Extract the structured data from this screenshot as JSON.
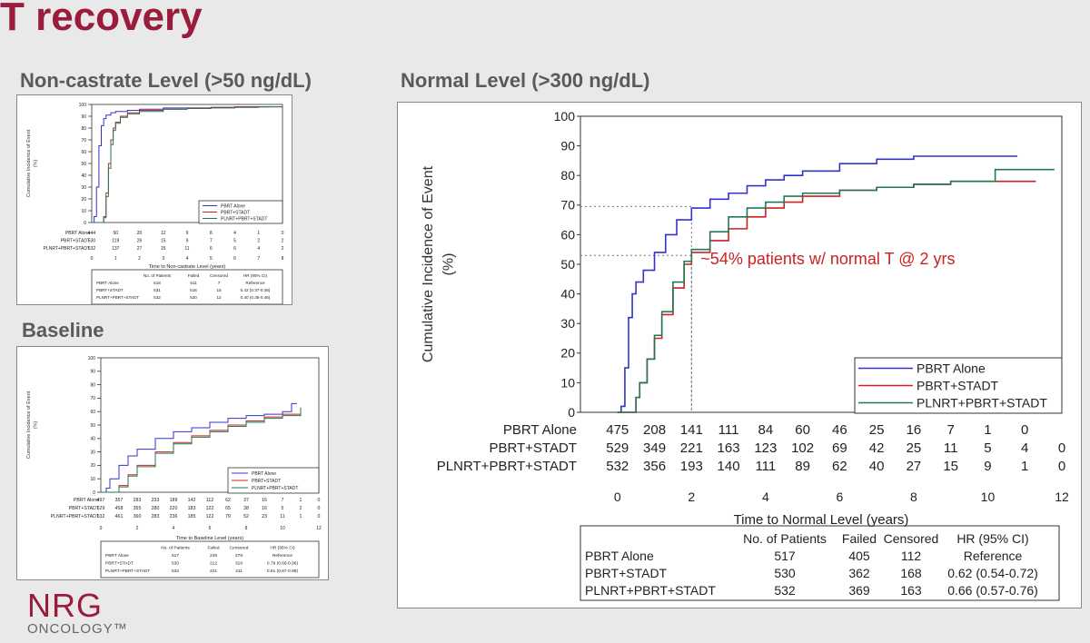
{
  "slide": {
    "title": "T recovery",
    "logo_main": "NRG",
    "logo_sub": "ONCOLOGY™"
  },
  "panels": {
    "noncastrate_title": "Non-castrate Level (>50 ng/dL)",
    "baseline_title": "Baseline",
    "normal_title": "Normal Level (>300 ng/dL)"
  },
  "colors": {
    "PBRT Alone": "#3333cc",
    "PBRT+STADT": "#cc2222",
    "PLNRT+PBRT+STADT": "#227755",
    "title": "#9b1b3a"
  },
  "chart_data": [
    {
      "id": "noncastrate",
      "type": "line",
      "title": "",
      "xlabel": "Time to Non-castrate Level (years)",
      "ylabel": "Cumulative Incidence of Event (%)",
      "xlim": [
        0,
        8
      ],
      "ylim": [
        0,
        100
      ],
      "xticks": [
        0,
        1,
        2,
        3,
        4,
        5,
        6,
        7,
        8
      ],
      "yticks": [
        0,
        10,
        20,
        30,
        40,
        50,
        60,
        70,
        80,
        90,
        100
      ],
      "legend_position": "bottom-right",
      "series": [
        {
          "name": "PBRT Alone",
          "x": [
            0,
            0.1,
            0.2,
            0.3,
            0.4,
            0.5,
            0.6,
            0.8,
            1.0,
            1.5,
            2.0,
            3.0,
            4.0,
            5.0,
            6.0,
            7.0,
            7.5
          ],
          "y": [
            0,
            5,
            30,
            65,
            82,
            88,
            91,
            93,
            94,
            95,
            96,
            97,
            97,
            97.5,
            98,
            98,
            98
          ]
        },
        {
          "name": "PBRT+STADT",
          "x": [
            0,
            0.3,
            0.5,
            0.6,
            0.7,
            0.8,
            0.9,
            1.0,
            1.2,
            1.5,
            2.0,
            3.0,
            4.0,
            5.0,
            6.0,
            7.0,
            8.0
          ],
          "y": [
            0,
            0,
            5,
            25,
            50,
            70,
            80,
            85,
            90,
            93,
            95,
            96,
            97,
            97.5,
            98,
            98,
            98
          ]
        },
        {
          "name": "PLNRT+PBRT+STADT",
          "x": [
            0,
            0.3,
            0.5,
            0.6,
            0.7,
            0.8,
            0.9,
            1.0,
            1.2,
            1.5,
            2.0,
            3.0,
            4.0,
            5.0,
            6.0,
            7.0,
            8.0
          ],
          "y": [
            0,
            0,
            4,
            22,
            46,
            66,
            78,
            84,
            89,
            92,
            94,
            96,
            96.5,
            97,
            97.5,
            98,
            98
          ]
        }
      ],
      "risk_table": {
        "rows": [
          {
            "label": "PBRT Alone",
            "values": [
              "444",
              "50",
              "20",
              "12",
              "9",
              "8",
              "4",
              "1",
              "0"
            ]
          },
          {
            "label": "PBRT+STADT",
            "values": [
              "530",
              "119",
              "26",
              "15",
              "9",
              "7",
              "5",
              "2",
              "2"
            ]
          },
          {
            "label": "PLNRT+PBRT+STADT",
            "values": [
              "532",
              "137",
              "27",
              "15",
              "11",
              "6",
              "6",
              "4",
              "2"
            ]
          }
        ]
      },
      "hr_table": {
        "headers": [
          "No. of Patients",
          "Failed",
          "Censored",
          "HR (95% CI)"
        ],
        "rows": [
          {
            "label": "PBRT Alone",
            "values": [
              "518",
              "511",
              "7",
              "Reference"
            ]
          },
          {
            "label": "PBRT+STADT",
            "values": [
              "531",
              "516",
              "15",
              "0.42 (0.37-0.48)"
            ]
          },
          {
            "label": "PLNRT+PBRT+STADT",
            "values": [
              "532",
              "520",
              "12",
              "0.40 (0.35-0.46)"
            ]
          }
        ]
      }
    },
    {
      "id": "baseline",
      "type": "line",
      "title": "",
      "xlabel": "Time to Baseline Level (years)",
      "ylabel": "Cumulative Incidence of Event (%)",
      "xlim": [
        0,
        12
      ],
      "ylim": [
        0,
        100
      ],
      "xticks": [
        0,
        2,
        4,
        6,
        8,
        10,
        12
      ],
      "yticks": [
        0,
        10,
        20,
        30,
        40,
        50,
        60,
        70,
        80,
        90,
        100
      ],
      "legend_position": "bottom-right",
      "series": [
        {
          "name": "PBRT Alone",
          "x": [
            0,
            0.3,
            0.5,
            1.0,
            1.5,
            2.0,
            3.0,
            4.0,
            5.0,
            6.0,
            7.0,
            8.0,
            9.0,
            10.0,
            10.5,
            10.8
          ],
          "y": [
            0,
            3,
            10,
            20,
            27,
            32,
            40,
            45,
            48,
            52,
            55,
            57,
            58,
            60,
            66,
            66
          ]
        },
        {
          "name": "PBRT+STADT",
          "x": [
            0,
            0.8,
            1.0,
            1.5,
            2.0,
            3.0,
            4.0,
            5.0,
            6.0,
            7.0,
            8.0,
            9.0,
            10.0,
            11.0
          ],
          "y": [
            0,
            0,
            5,
            13,
            20,
            30,
            37,
            42,
            46,
            50,
            53,
            56,
            58,
            60
          ]
        },
        {
          "name": "PLNRT+PBRT+STADT",
          "x": [
            0,
            0.8,
            1.0,
            1.5,
            2.0,
            3.0,
            4.0,
            5.0,
            6.0,
            7.0,
            8.0,
            9.0,
            10.0,
            11.0
          ],
          "y": [
            0,
            0,
            4,
            12,
            19,
            29,
            36,
            41,
            45,
            49,
            52,
            55,
            57,
            63
          ]
        }
      ],
      "risk_table": {
        "rows": [
          {
            "label": "PBRT Alone",
            "values": [
              "497",
              "357",
              "283",
              "233",
              "189",
              "142",
              "112",
              "62",
              "37",
              "16",
              "7",
              "1",
              "0"
            ]
          },
          {
            "label": "PBRT+STADT",
            "values": [
              "529",
              "458",
              "355",
              "280",
              "220",
              "183",
              "122",
              "65",
              "38",
              "16",
              "5",
              "2",
              "0"
            ]
          },
          {
            "label": "PLNRT+PBRT+STADT",
            "values": [
              "532",
              "461",
              "360",
              "283",
              "236",
              "185",
              "122",
              "79",
              "52",
              "23",
              "11",
              "1",
              "0"
            ]
          }
        ]
      },
      "hr_table": {
        "headers": [
          "No. of Patients",
          "Failed",
          "Censored",
          "HR (95% CI)"
        ],
        "rows": [
          {
            "label": "PBRT Alone",
            "values": [
              "517",
              "239",
              "278",
              "Reference"
            ]
          },
          {
            "label": "PBRT+STADT",
            "values": [
              "530",
              "212",
              "318",
              "0.79 (0.66-0.96)"
            ]
          },
          {
            "label": "PLNRT+PBRT+STADT",
            "values": [
              "532",
              "221",
              "311",
              "0.81 (0.67-0.98)"
            ]
          }
        ]
      }
    },
    {
      "id": "normal",
      "type": "line",
      "title": "",
      "xlabel": "Time to Normal Level (years)",
      "ylabel": "Cumulative Incidence of Event (%)",
      "xlim": [
        -1,
        12
      ],
      "ylim": [
        0,
        100
      ],
      "xticks": [
        0,
        2,
        4,
        6,
        8,
        10,
        12
      ],
      "yticks": [
        0,
        10,
        20,
        30,
        40,
        50,
        60,
        70,
        80,
        90,
        100
      ],
      "legend_position": "bottom-right",
      "annotation": "~54% patients w/ normal T @ 2 yrs",
      "reference_lines": [
        {
          "x": 2,
          "y": 69.5
        },
        {
          "x": 2,
          "y": 53
        }
      ],
      "series": [
        {
          "name": "PBRT Alone",
          "x": [
            0,
            0.1,
            0.2,
            0.3,
            0.4,
            0.5,
            0.7,
            1.0,
            1.3,
            1.6,
            2.0,
            2.5,
            3.0,
            3.5,
            4.0,
            4.5,
            5.0,
            6.0,
            7.0,
            8.0,
            9.0,
            10.0,
            10.8
          ],
          "y": [
            0,
            2,
            15,
            32,
            40,
            44,
            48,
            54,
            60,
            65,
            69,
            72,
            74,
            76.5,
            78.5,
            80,
            81.5,
            84,
            85.5,
            86.5,
            86.5,
            86.5,
            86.5
          ]
        },
        {
          "name": "PBRT+STADT",
          "x": [
            0,
            0.4,
            0.5,
            0.6,
            0.8,
            1.0,
            1.2,
            1.5,
            1.8,
            2.0,
            2.5,
            3.0,
            3.5,
            4.0,
            4.5,
            5.0,
            6.0,
            7.0,
            8.0,
            9.0,
            10.0,
            11.0,
            11.3
          ],
          "y": [
            0,
            0,
            5,
            10,
            18,
            25,
            33,
            42,
            50,
            54,
            58,
            62,
            66,
            69,
            71,
            73,
            75,
            76,
            77,
            78,
            78,
            78,
            78
          ]
        },
        {
          "name": "PLNRT+PBRT+STADT",
          "x": [
            0,
            0.4,
            0.5,
            0.6,
            0.8,
            1.0,
            1.2,
            1.5,
            1.8,
            2.0,
            2.5,
            3.0,
            3.5,
            4.0,
            4.5,
            5.0,
            6.0,
            7.0,
            8.0,
            9.0,
            10.0,
            10.2,
            11.0,
            11.8
          ],
          "y": [
            0,
            0,
            5,
            10,
            18,
            26,
            34,
            44,
            51,
            55,
            61,
            66,
            69,
            71,
            73,
            74,
            75,
            76,
            77,
            78,
            78,
            82,
            82,
            82
          ]
        }
      ],
      "risk_table": {
        "rows": [
          {
            "label": "PBRT Alone",
            "values": [
              "475",
              "208",
              "141",
              "111",
              "84",
              "60",
              "46",
              "25",
              "16",
              "7",
              "1",
              "0"
            ]
          },
          {
            "label": "PBRT+STADT",
            "values": [
              "529",
              "349",
              "221",
              "163",
              "123",
              "102",
              "69",
              "42",
              "25",
              "11",
              "5",
              "4",
              "0"
            ]
          },
          {
            "label": "PLNRT+PBRT+STADT",
            "values": [
              "532",
              "356",
              "193",
              "140",
              "111",
              "89",
              "62",
              "40",
              "27",
              "15",
              "9",
              "1",
              "0"
            ]
          }
        ]
      },
      "hr_table": {
        "headers": [
          "No. of Patients",
          "Failed",
          "Censored",
          "HR (95% CI)"
        ],
        "rows": [
          {
            "label": "PBRT Alone",
            "values": [
              "517",
              "405",
              "112",
              "Reference"
            ]
          },
          {
            "label": "PBRT+STADT",
            "values": [
              "530",
              "362",
              "168",
              "0.62 (0.54-0.72)"
            ]
          },
          {
            "label": "PLNRT+PBRT+STADT",
            "values": [
              "532",
              "369",
              "163",
              "0.66 (0.57-0.76)"
            ]
          }
        ]
      }
    }
  ]
}
